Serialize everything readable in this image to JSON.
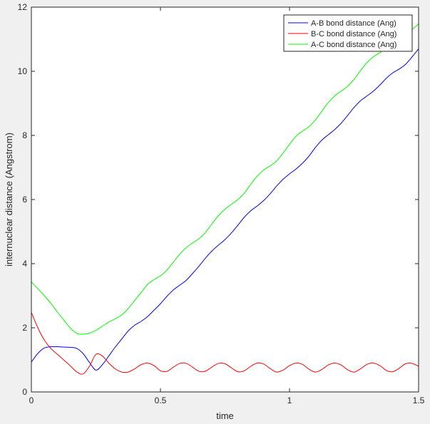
{
  "chart_data": {
    "type": "line",
    "title": "",
    "xlabel": "time",
    "ylabel": "internuclear distance (Angstrom)",
    "xlim": [
      0,
      1.5
    ],
    "ylim": [
      0,
      12
    ],
    "xticks": [
      0,
      0.5,
      1,
      1.5
    ],
    "xtick_labels": [
      "0",
      "0.5",
      "1",
      "1.5"
    ],
    "yticks": [
      0,
      2,
      4,
      6,
      8,
      10,
      12
    ],
    "ytick_labels": [
      "0",
      "2",
      "4",
      "6",
      "8",
      "10",
      "12"
    ],
    "grid": false,
    "legend_position": "top-right",
    "series": [
      {
        "name": "A-B bond distance (Ang)",
        "color": "#0000ff",
        "x": [
          0,
          0.025,
          0.05,
          0.075,
          0.1,
          0.125,
          0.15,
          0.175,
          0.2,
          0.225,
          0.25,
          0.275,
          0.3,
          0.325,
          0.35,
          0.375,
          0.4,
          0.425,
          0.45,
          0.475,
          0.5,
          0.525,
          0.55,
          0.575,
          0.6,
          0.625,
          0.65,
          0.675,
          0.7,
          0.725,
          0.75,
          0.775,
          0.8,
          0.825,
          0.85,
          0.875,
          0.9,
          0.925,
          0.95,
          0.975,
          1.0,
          1.025,
          1.05,
          1.075,
          1.1,
          1.125,
          1.15,
          1.175,
          1.2,
          1.225,
          1.25,
          1.275,
          1.3,
          1.325,
          1.35,
          1.375,
          1.4,
          1.425,
          1.45,
          1.475,
          1.5
        ],
        "values": [
          0.93,
          1.2,
          1.37,
          1.41,
          1.41,
          1.4,
          1.39,
          1.36,
          1.2,
          0.92,
          0.68,
          0.85,
          1.12,
          1.4,
          1.65,
          1.9,
          2.08,
          2.2,
          2.35,
          2.55,
          2.75,
          2.98,
          3.18,
          3.33,
          3.48,
          3.7,
          3.93,
          4.18,
          4.4,
          4.58,
          4.75,
          4.96,
          5.2,
          5.45,
          5.65,
          5.8,
          5.97,
          6.18,
          6.42,
          6.63,
          6.8,
          6.95,
          7.13,
          7.35,
          7.62,
          7.85,
          8.02,
          8.18,
          8.38,
          8.62,
          8.87,
          9.08,
          9.23,
          9.38,
          9.57,
          9.78,
          9.95,
          10.07,
          10.22,
          10.45,
          10.7
        ]
      },
      {
        "name": "B-C bond distance (Ang)",
        "color": "#ff0000",
        "x": [
          0,
          0.025,
          0.05,
          0.075,
          0.1,
          0.125,
          0.15,
          0.175,
          0.2,
          0.225,
          0.25,
          0.275,
          0.3,
          0.325,
          0.35,
          0.375,
          0.4,
          0.425,
          0.45,
          0.475,
          0.5,
          0.525,
          0.55,
          0.575,
          0.6,
          0.625,
          0.65,
          0.675,
          0.7,
          0.725,
          0.75,
          0.775,
          0.8,
          0.825,
          0.85,
          0.875,
          0.9,
          0.925,
          0.95,
          0.975,
          1.0,
          1.025,
          1.05,
          1.075,
          1.1,
          1.125,
          1.15,
          1.175,
          1.2,
          1.225,
          1.25,
          1.275,
          1.3,
          1.325,
          1.35,
          1.375,
          1.4,
          1.425,
          1.45,
          1.475,
          1.5
        ],
        "values": [
          2.48,
          2.0,
          1.62,
          1.36,
          1.18,
          1.0,
          0.82,
          0.63,
          0.56,
          0.8,
          1.17,
          1.12,
          0.9,
          0.72,
          0.62,
          0.62,
          0.72,
          0.85,
          0.9,
          0.82,
          0.66,
          0.64,
          0.77,
          0.89,
          0.89,
          0.77,
          0.64,
          0.65,
          0.78,
          0.89,
          0.88,
          0.75,
          0.63,
          0.66,
          0.8,
          0.9,
          0.87,
          0.73,
          0.62,
          0.68,
          0.82,
          0.9,
          0.86,
          0.71,
          0.62,
          0.7,
          0.84,
          0.9,
          0.84,
          0.69,
          0.62,
          0.72,
          0.86,
          0.9,
          0.82,
          0.67,
          0.63,
          0.74,
          0.88,
          0.89,
          0.8
        ]
      },
      {
        "name": "A-C bond distance (Ang)",
        "color": "#00ff00",
        "x": [
          0,
          0.025,
          0.05,
          0.075,
          0.1,
          0.125,
          0.15,
          0.175,
          0.2,
          0.225,
          0.25,
          0.275,
          0.3,
          0.325,
          0.35,
          0.375,
          0.4,
          0.425,
          0.45,
          0.475,
          0.5,
          0.525,
          0.55,
          0.575,
          0.6,
          0.625,
          0.65,
          0.675,
          0.7,
          0.725,
          0.75,
          0.775,
          0.8,
          0.825,
          0.85,
          0.875,
          0.9,
          0.925,
          0.95,
          0.975,
          1.0,
          1.025,
          1.05,
          1.075,
          1.1,
          1.125,
          1.15,
          1.175,
          1.2,
          1.225,
          1.25,
          1.275,
          1.3,
          1.325,
          1.35,
          1.375,
          1.4,
          1.425,
          1.45,
          1.475,
          1.5
        ],
        "values": [
          3.43,
          3.22,
          3.0,
          2.77,
          2.5,
          2.25,
          2.0,
          1.83,
          1.8,
          1.83,
          1.92,
          2.05,
          2.18,
          2.28,
          2.4,
          2.6,
          2.85,
          3.1,
          3.35,
          3.5,
          3.62,
          3.8,
          4.05,
          4.3,
          4.5,
          4.65,
          4.78,
          4.98,
          5.25,
          5.5,
          5.7,
          5.85,
          6.0,
          6.2,
          6.48,
          6.73,
          6.92,
          7.05,
          7.2,
          7.45,
          7.72,
          7.97,
          8.13,
          8.27,
          8.48,
          8.75,
          9.02,
          9.23,
          9.38,
          9.53,
          9.75,
          10.02,
          10.27,
          10.45,
          10.58,
          10.72,
          10.9,
          11.05,
          11.17,
          11.3,
          11.48
        ]
      }
    ]
  }
}
